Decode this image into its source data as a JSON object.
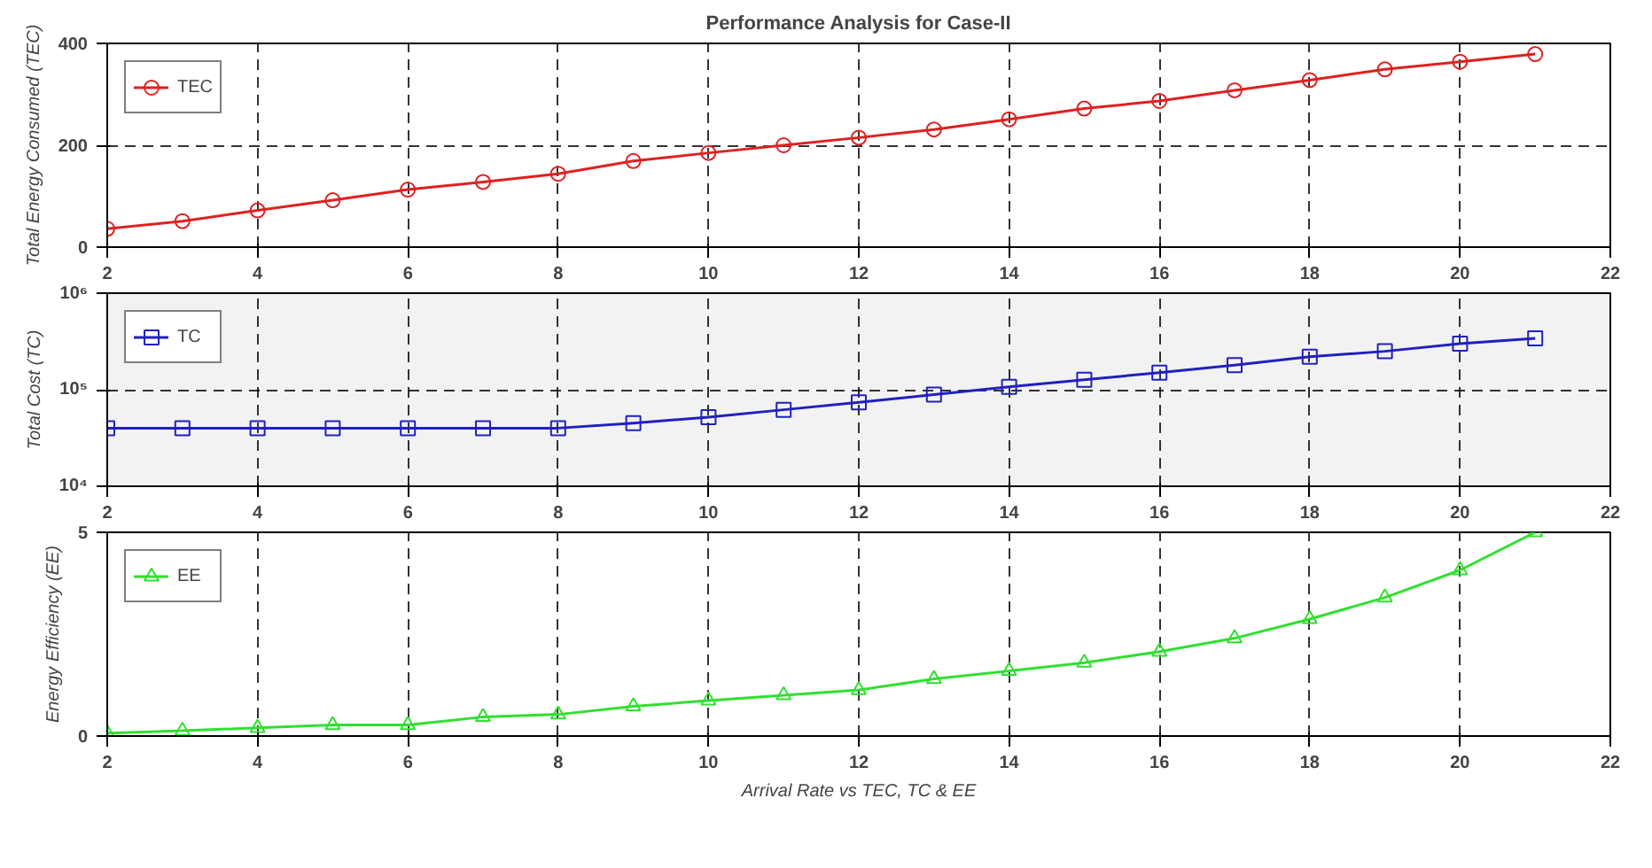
{
  "chart_data": [
    {
      "type": "line",
      "title": "Performance Analysis for Case-II",
      "ylabel": "Total Energy Consumed (TEC)",
      "x": [
        2,
        3,
        4,
        5,
        6,
        7,
        8,
        9,
        10,
        11,
        12,
        13,
        14,
        15,
        16,
        17,
        18,
        19,
        20,
        21
      ],
      "xlim": [
        2,
        22
      ],
      "xticks": [
        2,
        4,
        6,
        8,
        10,
        12,
        14,
        16,
        18,
        20,
        22
      ],
      "ylim": [
        0,
        400
      ],
      "yticks": [
        0,
        200,
        400
      ],
      "grid": true,
      "legend": "top left",
      "marker": "circle",
      "line_style": "solid",
      "series": [
        {
          "name": "TEC",
          "color": "#e02020",
          "values": [
            36,
            51,
            72,
            92,
            113,
            128,
            144,
            169,
            185,
            200,
            215,
            231,
            251,
            272,
            287,
            308,
            328,
            349,
            364,
            379
          ]
        }
      ]
    },
    {
      "type": "line",
      "ylabel": "Total Cost (TC)",
      "x": [
        2,
        3,
        4,
        5,
        6,
        7,
        8,
        9,
        10,
        11,
        12,
        13,
        14,
        15,
        16,
        17,
        18,
        19,
        20,
        21
      ],
      "xlim": [
        2,
        22
      ],
      "xticks": [
        2,
        4,
        6,
        8,
        10,
        12,
        14,
        16,
        18,
        20,
        22
      ],
      "ylim": [
        10000,
        1000000
      ],
      "yticks": [
        {
          "value": 10000,
          "label": "10⁴"
        },
        {
          "value": 100000,
          "label": "10⁵"
        },
        {
          "value": 1000000,
          "label": "10⁶"
        }
      ],
      "log": "y",
      "grid": true,
      "legend": "top left",
      "marker": "square",
      "line_style": "solid",
      "series": [
        {
          "name": "TC",
          "color": "#2020c0",
          "values": [
            40000,
            40000,
            40000,
            40000,
            40000,
            40000,
            40000,
            45000,
            52000,
            62000,
            74000,
            89000,
            107000,
            127000,
            150000,
            180000,
            220000,
            250000,
            300000,
            340000
          ]
        }
      ]
    },
    {
      "type": "line",
      "ylabel": "Energy Efficiency (EE)",
      "xlabel": "Arrival Rate vs TEC, TC & EE",
      "x": [
        2,
        3,
        4,
        5,
        6,
        7,
        8,
        9,
        10,
        11,
        12,
        13,
        14,
        15,
        16,
        17,
        18,
        19,
        20,
        21
      ],
      "xlim": [
        2,
        22
      ],
      "xticks": [
        2,
        4,
        6,
        8,
        10,
        12,
        14,
        16,
        18,
        20,
        22
      ],
      "ylim": [
        0,
        5
      ],
      "yticks": [
        0,
        5
      ],
      "grid": "x",
      "legend": "top left",
      "marker": "triangle",
      "line_style": "solid",
      "series": [
        {
          "name": "EE",
          "color": "#30e030",
          "values": [
            0.07,
            0.13,
            0.2,
            0.27,
            0.27,
            0.47,
            0.53,
            0.73,
            0.87,
            1.0,
            1.13,
            1.4,
            1.6,
            1.8,
            2.07,
            2.4,
            2.87,
            3.4,
            4.07,
            5.0
          ]
        }
      ]
    }
  ]
}
